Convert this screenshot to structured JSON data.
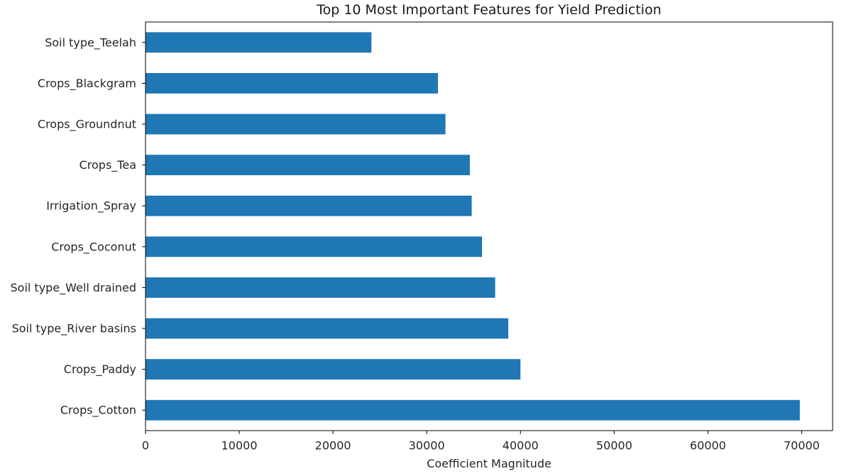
{
  "chart_data": {
    "type": "bar",
    "orientation": "horizontal",
    "title": "Top 10 Most Important Features for Yield Prediction",
    "xlabel": "Coefficient Magnitude",
    "ylabel": "",
    "categories": [
      "Soil type_Teelah",
      "Crops_Blackgram",
      "Crops_Groundnut",
      "Crops_Tea",
      "Irrigation_Spray",
      "Crops_Coconut",
      "Soil type_Well drained",
      "Soil type_River basins",
      "Crops_Paddy",
      "Crops_Cotton"
    ],
    "values": [
      24100,
      31200,
      32000,
      34600,
      34800,
      35900,
      37300,
      38700,
      40000,
      69800
    ],
    "xlim": [
      0,
      73300
    ],
    "xticks": [
      0,
      10000,
      20000,
      30000,
      40000,
      50000,
      60000,
      70000
    ],
    "xtick_labels": [
      "0",
      "10000",
      "20000",
      "30000",
      "40000",
      "50000",
      "60000",
      "70000"
    ],
    "bar_color": "#1f77b4",
    "grid": false,
    "legend": "none"
  }
}
